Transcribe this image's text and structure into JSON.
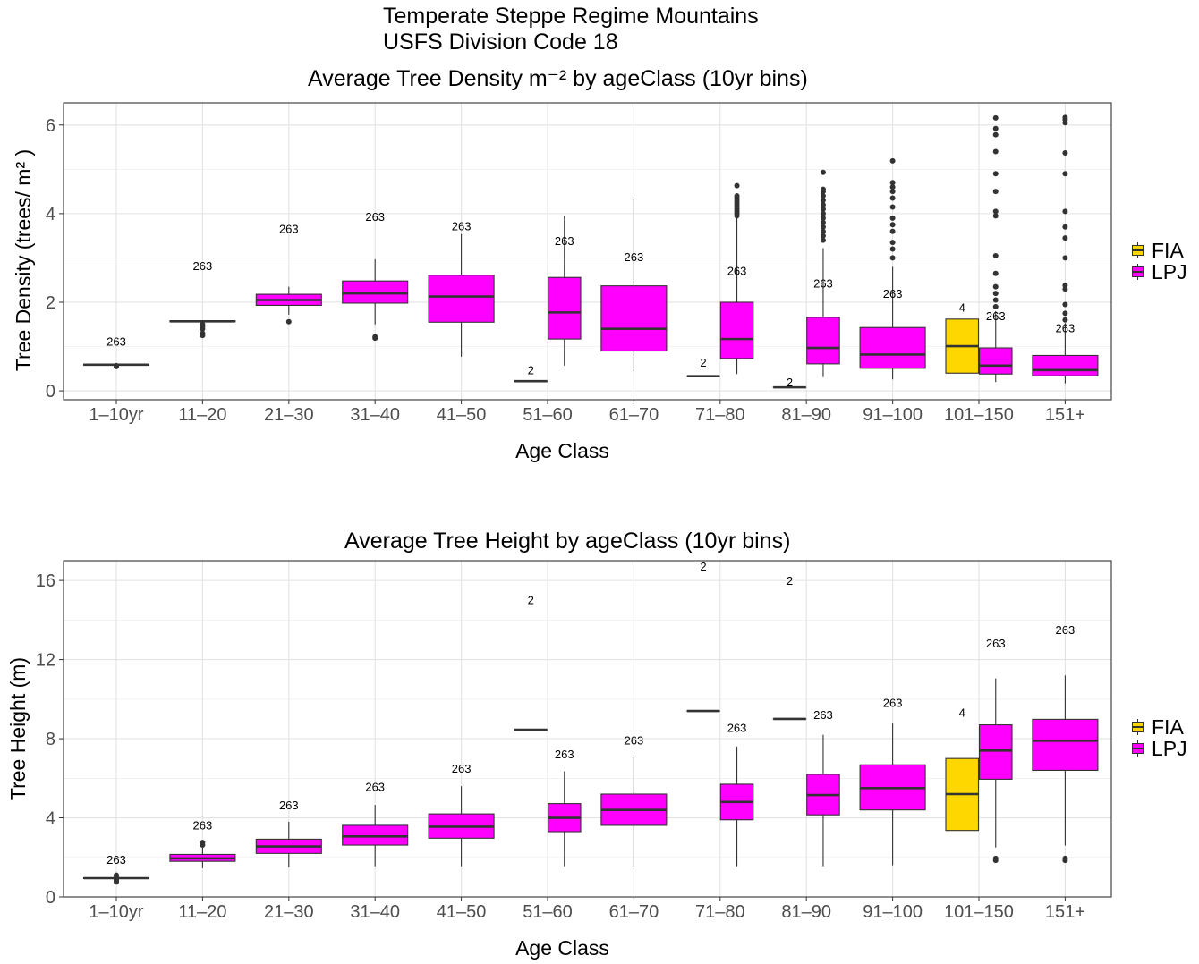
{
  "header": {
    "line1": "Temperate Steppe Regime Mountains",
    "line2": "USFS Division Code 18"
  },
  "colors": {
    "FIA": "#FFD700",
    "LPJ": "#FF00FF",
    "outline": "#333333"
  },
  "legend": {
    "items": [
      "FIA",
      "LPJ"
    ]
  },
  "chart_data": [
    {
      "type": "box",
      "title": "Average Tree Density   m⁻²  by ageClass (10yr bins)",
      "xlabel": "Age Class",
      "ylabel": "Tree Density (trees/ m²  )",
      "ylim": [
        -0.2,
        6.5
      ],
      "yticks": [
        0,
        2,
        4,
        6
      ],
      "grid": true,
      "legend_position": "right",
      "categories": [
        "1–10yr",
        "11–20",
        "21–30",
        "31–40",
        "41–50",
        "51–60",
        "61–70",
        "71–80",
        "81–90",
        "91–100",
        "101–150",
        "151+"
      ],
      "boxes": [
        {
          "category": "1–10yr",
          "group": "LPJ",
          "full": true,
          "whisker_low": 0.58,
          "q1": 0.58,
          "median": 0.59,
          "q3": 0.6,
          "whisker_high": 0.6,
          "outliers": [
            0.55,
            0.56,
            0.57
          ],
          "n_label": "263",
          "n_y": 1.02
        },
        {
          "category": "11–20",
          "group": "LPJ",
          "full": true,
          "whisker_low": 1.56,
          "q1": 1.56,
          "median": 1.57,
          "q3": 1.58,
          "whisker_high": 1.58,
          "outliers": [
            1.25,
            1.3,
            1.4,
            1.45,
            1.5
          ],
          "n_label": "263",
          "n_y": 2.73
        },
        {
          "category": "21–30",
          "group": "LPJ",
          "full": true,
          "whisker_low": 1.72,
          "q1": 1.93,
          "median": 2.05,
          "q3": 2.18,
          "whisker_high": 2.35,
          "outliers": [
            1.56
          ],
          "n_label": "263",
          "n_y": 3.56
        },
        {
          "category": "31–40",
          "group": "LPJ",
          "full": true,
          "whisker_low": 1.5,
          "q1": 1.98,
          "median": 2.2,
          "q3": 2.48,
          "whisker_high": 2.97,
          "outliers": [
            1.19,
            1.22
          ],
          "n_label": "263",
          "n_y": 3.84
        },
        {
          "category": "41–50",
          "group": "LPJ",
          "full": true,
          "whisker_low": 0.77,
          "q1": 1.55,
          "median": 2.13,
          "q3": 2.61,
          "whisker_high": 3.54,
          "outliers": [],
          "n_label": "263",
          "n_y": 3.62
        },
        {
          "category": "51–60",
          "group": "FIA",
          "dodge": "left",
          "whisker_low": 0.22,
          "q1": 0.22,
          "median": 0.22,
          "q3": 0.22,
          "whisker_high": 0.22,
          "outliers": [],
          "n_label": "2",
          "n_y": 0.38
        },
        {
          "category": "51–60",
          "group": "LPJ",
          "dodge": "right",
          "whisker_low": 0.57,
          "q1": 1.17,
          "median": 1.77,
          "q3": 2.56,
          "whisker_high": 3.95,
          "outliers": [],
          "n_label": "263",
          "n_y": 3.29
        },
        {
          "category": "61–70",
          "group": "LPJ",
          "full": true,
          "whisker_low": 0.44,
          "q1": 0.9,
          "median": 1.4,
          "q3": 2.37,
          "whisker_high": 4.32,
          "outliers": [],
          "n_label": "263",
          "n_y": 2.93
        },
        {
          "category": "71–80",
          "group": "FIA",
          "dodge": "left",
          "whisker_low": 0.33,
          "q1": 0.33,
          "median": 0.33,
          "q3": 0.33,
          "whisker_high": 0.33,
          "outliers": [],
          "n_label": "2",
          "n_y": 0.55
        },
        {
          "category": "71–80",
          "group": "LPJ",
          "dodge": "right",
          "whisker_low": 0.38,
          "q1": 0.73,
          "median": 1.17,
          "q3": 2.0,
          "whisker_high": 3.92,
          "outliers": [
            3.95,
            4.0,
            4.05,
            4.1,
            4.15,
            4.2,
            4.25,
            4.3,
            4.35,
            4.4,
            4.63
          ],
          "n_label": "263",
          "n_y": 2.62
        },
        {
          "category": "81–90",
          "group": "FIA",
          "dodge": "left",
          "whisker_low": 0.08,
          "q1": 0.08,
          "median": 0.08,
          "q3": 0.08,
          "whisker_high": 0.08,
          "outliers": [],
          "n_label": "2",
          "n_y": 0.1
        },
        {
          "category": "81–90",
          "group": "LPJ",
          "dodge": "right",
          "whisker_low": 0.31,
          "q1": 0.61,
          "median": 0.97,
          "q3": 1.66,
          "whisker_high": 3.22,
          "outliers": [
            3.4,
            3.5,
            3.6,
            3.7,
            3.8,
            3.9,
            4.0,
            4.1,
            4.2,
            4.3,
            4.4,
            4.5,
            4.55,
            4.93
          ],
          "n_label": "263",
          "n_y": 2.33
        },
        {
          "category": "91–100",
          "group": "LPJ",
          "full": true,
          "whisker_low": 0.26,
          "q1": 0.51,
          "median": 0.82,
          "q3": 1.43,
          "whisker_high": 2.8,
          "outliers": [
            3.0,
            3.2,
            3.35,
            3.6,
            3.75,
            3.9,
            4.15,
            4.35,
            4.5,
            4.6,
            4.7,
            5.19
          ],
          "n_label": "263",
          "n_y": 2.1
        },
        {
          "category": "101–150",
          "group": "FIA",
          "dodge": "left",
          "whisker_low": 0.4,
          "q1": 0.4,
          "median": 1.01,
          "q3": 1.62,
          "whisker_high": 1.62,
          "outliers": [],
          "n_label": "4",
          "n_y": 1.79
        },
        {
          "category": "101–150",
          "group": "LPJ",
          "dodge": "right",
          "whisker_low": 0.2,
          "q1": 0.38,
          "median": 0.57,
          "q3": 0.97,
          "whisker_high": 1.8,
          "outliers": [
            1.9,
            2.05,
            2.2,
            2.35,
            2.65,
            3.05,
            3.95,
            4.05,
            4.5,
            4.9,
            5.4,
            5.78,
            5.92,
            6.16
          ],
          "n_label": "263",
          "n_y": 1.6
        },
        {
          "category": "151+",
          "group": "LPJ",
          "full": true,
          "whisker_low": 0.17,
          "q1": 0.34,
          "median": 0.47,
          "q3": 0.8,
          "whisker_high": 1.53,
          "outliers": [
            1.6,
            1.75,
            1.95,
            2.3,
            2.38,
            3.0,
            3.45,
            3.7,
            4.05,
            4.9,
            5.37,
            6.05,
            6.12,
            6.17
          ],
          "n_label": "263",
          "n_y": 1.32
        }
      ]
    },
    {
      "type": "box",
      "title": "Average Tree Height by ageClass (10yr bins)",
      "xlabel": "Age Class",
      "ylabel": "Tree Height (m)",
      "ylim": [
        0,
        17
      ],
      "yticks": [
        0,
        4,
        8,
        12,
        16
      ],
      "grid": true,
      "legend_position": "right",
      "categories": [
        "1–10yr",
        "11–20",
        "21–30",
        "31–40",
        "41–50",
        "51–60",
        "61–70",
        "71–80",
        "81–90",
        "91–100",
        "101–150",
        "151+"
      ],
      "boxes": [
        {
          "category": "1–10yr",
          "group": "LPJ",
          "full": true,
          "whisker_low": 0.92,
          "q1": 0.93,
          "median": 0.95,
          "q3": 0.97,
          "whisker_high": 0.98,
          "outliers": [
            0.75,
            0.82,
            0.88,
            1.05,
            1.1
          ],
          "n_label": "263",
          "n_y": 1.68
        },
        {
          "category": "11–20",
          "group": "LPJ",
          "full": true,
          "whisker_low": 1.45,
          "q1": 1.8,
          "median": 1.95,
          "q3": 2.15,
          "whisker_high": 2.5,
          "outliers": [
            2.62,
            2.75
          ],
          "n_label": "263",
          "n_y": 3.42
        },
        {
          "category": "21–30",
          "group": "LPJ",
          "full": true,
          "whisker_low": 1.5,
          "q1": 2.2,
          "median": 2.55,
          "q3": 2.92,
          "whisker_high": 3.8,
          "outliers": [],
          "n_label": "263",
          "n_y": 4.44
        },
        {
          "category": "31–40",
          "group": "LPJ",
          "full": true,
          "whisker_low": 1.55,
          "q1": 2.62,
          "median": 3.06,
          "q3": 3.62,
          "whisker_high": 4.65,
          "outliers": [],
          "n_label": "263",
          "n_y": 5.35
        },
        {
          "category": "41–50",
          "group": "LPJ",
          "full": true,
          "whisker_low": 1.55,
          "q1": 2.97,
          "median": 3.55,
          "q3": 4.2,
          "whisker_high": 5.6,
          "outliers": [],
          "n_label": "263",
          "n_y": 6.28
        },
        {
          "category": "51–60",
          "group": "FIA",
          "dodge": "left",
          "whisker_low": 8.45,
          "q1": 8.45,
          "median": 8.45,
          "q3": 8.45,
          "whisker_high": 8.45,
          "outliers": [],
          "n_label": "2",
          "n_y": 14.8
        },
        {
          "category": "51–60",
          "group": "LPJ",
          "dodge": "right",
          "whisker_low": 1.55,
          "q1": 3.3,
          "median": 4.0,
          "q3": 4.72,
          "whisker_high": 6.35,
          "outliers": [],
          "n_label": "263",
          "n_y": 7.0
        },
        {
          "category": "61–70",
          "group": "LPJ",
          "full": true,
          "whisker_low": 1.55,
          "q1": 3.62,
          "median": 4.4,
          "q3": 5.2,
          "whisker_high": 7.05,
          "outliers": [],
          "n_label": "263",
          "n_y": 7.72
        },
        {
          "category": "71–80",
          "group": "FIA",
          "dodge": "left",
          "whisker_low": 9.4,
          "q1": 9.4,
          "median": 9.4,
          "q3": 9.4,
          "whisker_high": 9.4,
          "outliers": [],
          "n_label": "2",
          "n_y": 16.5
        },
        {
          "category": "71–80",
          "group": "LPJ",
          "dodge": "right",
          "whisker_low": 1.55,
          "q1": 3.9,
          "median": 4.8,
          "q3": 5.7,
          "whisker_high": 7.6,
          "outliers": [],
          "n_label": "263",
          "n_y": 8.34
        },
        {
          "category": "81–90",
          "group": "FIA",
          "dodge": "left",
          "whisker_low": 9.0,
          "q1": 9.0,
          "median": 9.0,
          "q3": 9.0,
          "whisker_high": 9.0,
          "outliers": [],
          "n_label": "2",
          "n_y": 15.78
        },
        {
          "category": "81–90",
          "group": "LPJ",
          "dodge": "right",
          "whisker_low": 1.55,
          "q1": 4.15,
          "median": 5.15,
          "q3": 6.2,
          "whisker_high": 8.2,
          "outliers": [],
          "n_label": "263",
          "n_y": 9.0
        },
        {
          "category": "91–100",
          "group": "LPJ",
          "full": true,
          "whisker_low": 1.6,
          "q1": 4.4,
          "median": 5.5,
          "q3": 6.68,
          "whisker_high": 8.8,
          "outliers": [],
          "n_label": "263",
          "n_y": 9.6
        },
        {
          "category": "101–150",
          "group": "FIA",
          "dodge": "left",
          "whisker_low": 3.36,
          "q1": 3.36,
          "median": 5.2,
          "q3": 7.0,
          "whisker_high": 7.0,
          "outliers": [],
          "n_label": "4",
          "n_y": 9.1
        },
        {
          "category": "101–150",
          "group": "LPJ",
          "dodge": "right",
          "whisker_low": 2.5,
          "q1": 5.95,
          "median": 7.4,
          "q3": 8.7,
          "whisker_high": 11.05,
          "outliers": [
            1.85,
            1.95
          ],
          "n_label": "263",
          "n_y": 12.62
        },
        {
          "category": "151+",
          "group": "LPJ",
          "full": true,
          "whisker_low": 2.6,
          "q1": 6.4,
          "median": 7.9,
          "q3": 8.98,
          "whisker_high": 11.2,
          "outliers": [
            1.85,
            1.95
          ],
          "n_label": "263",
          "n_y": 13.3
        }
      ]
    }
  ]
}
